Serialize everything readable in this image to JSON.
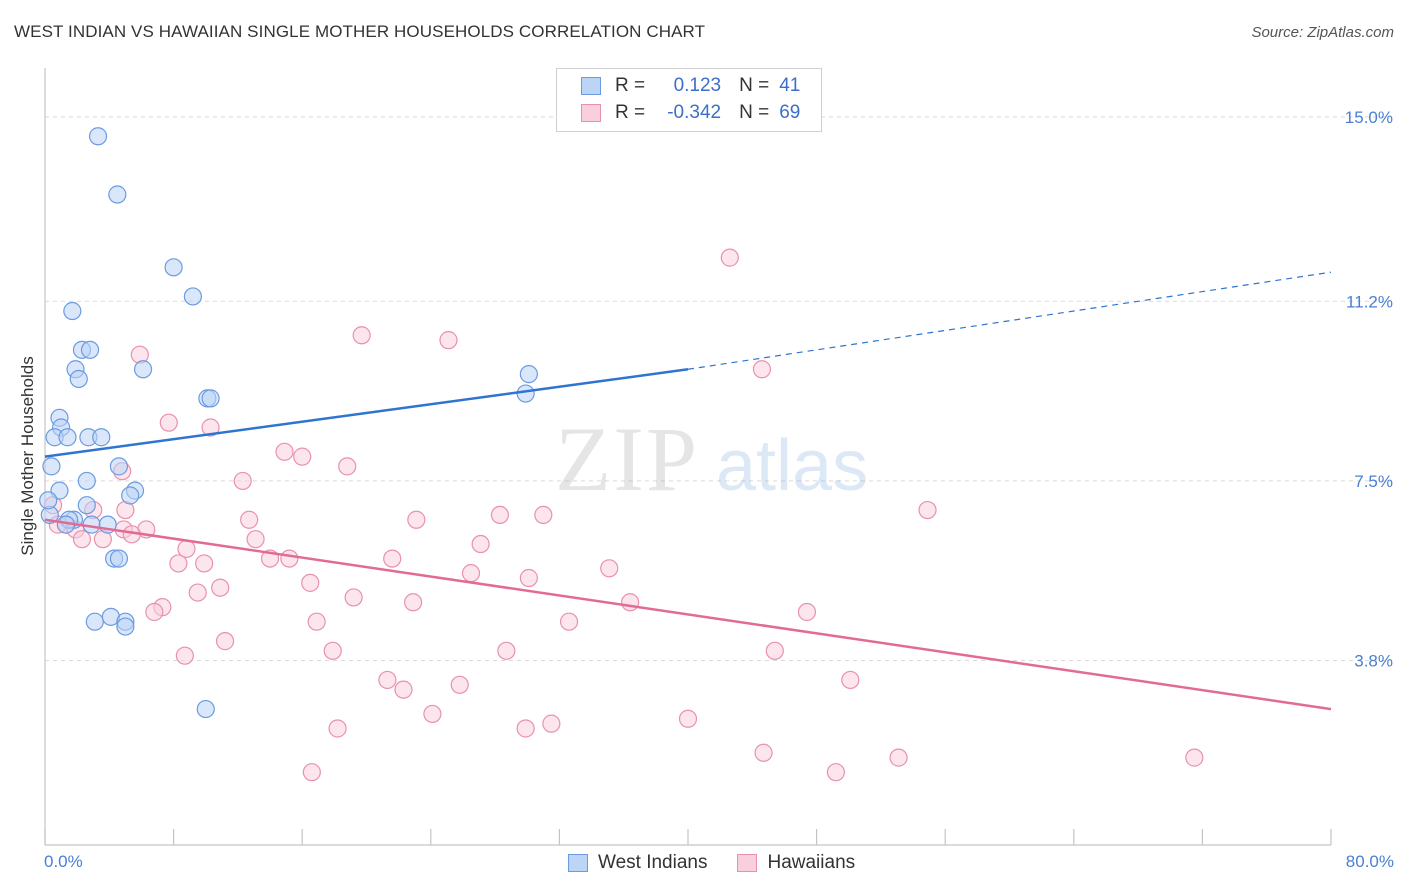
{
  "title": "WEST INDIAN VS HAWAIIAN SINGLE MOTHER HOUSEHOLDS CORRELATION CHART",
  "source": "Source: ZipAtlas.com",
  "colors": {
    "blue": "#6b9be0",
    "blue_fill": "#bcd4f5",
    "blue_line": "#2f74d0",
    "pink": "#e891ae",
    "pink_fill": "#f9cfdc",
    "pink_line": "#e26a96",
    "tick_label": "#4a7fd4"
  },
  "legend": {
    "rows": [
      {
        "r_label": "R =",
        "r_value": "0.123",
        "n_label": "N =",
        "n_value": "41"
      },
      {
        "r_label": "R =",
        "r_value": "-0.342",
        "n_label": "N =",
        "n_value": "69"
      }
    ]
  },
  "bottom_legend": [
    "West Indians",
    "Hawaiians"
  ],
  "chart_data": {
    "type": "scatter",
    "xlabel": "",
    "ylabel": "Single Mother Households",
    "xlim": [
      0,
      80
    ],
    "ylim": [
      0,
      15.8
    ],
    "x_tick_labels": {
      "min": "0.0%",
      "max": "80.0%"
    },
    "y_ticks": [
      {
        "value": 3.8,
        "label": "3.8%"
      },
      {
        "value": 7.5,
        "label": "7.5%"
      },
      {
        "value": 11.2,
        "label": "11.2%"
      },
      {
        "value": 15.0,
        "label": "15.0%"
      }
    ],
    "grid": true,
    "legend_position": "top-center",
    "series": [
      {
        "name": "West Indians",
        "r": 0.123,
        "n": 41,
        "trend": {
          "x0": 0,
          "y0": 8.0,
          "x1": 40,
          "y1": 9.8,
          "dashed_to_x": 80,
          "dashed_to_y": 11.8
        },
        "points": [
          [
            3.3,
            14.6
          ],
          [
            4.5,
            13.4
          ],
          [
            8.0,
            11.9
          ],
          [
            9.2,
            11.3
          ],
          [
            1.7,
            11.0
          ],
          [
            2.3,
            10.2
          ],
          [
            2.8,
            10.2
          ],
          [
            6.1,
            9.8
          ],
          [
            1.9,
            9.8
          ],
          [
            2.1,
            9.6
          ],
          [
            10.1,
            9.2
          ],
          [
            10.3,
            9.2
          ],
          [
            30.1,
            9.7
          ],
          [
            29.9,
            9.3
          ],
          [
            0.9,
            8.8
          ],
          [
            1.0,
            8.6
          ],
          [
            0.6,
            8.4
          ],
          [
            1.4,
            8.4
          ],
          [
            2.7,
            8.4
          ],
          [
            3.5,
            8.4
          ],
          [
            0.4,
            7.8
          ],
          [
            4.6,
            7.8
          ],
          [
            2.6,
            7.5
          ],
          [
            0.9,
            7.3
          ],
          [
            5.6,
            7.3
          ],
          [
            5.3,
            7.2
          ],
          [
            2.6,
            7.0
          ],
          [
            1.8,
            6.7
          ],
          [
            1.5,
            6.7
          ],
          [
            0.3,
            6.8
          ],
          [
            2.9,
            6.6
          ],
          [
            3.9,
            6.6
          ],
          [
            4.3,
            5.9
          ],
          [
            4.6,
            5.9
          ],
          [
            3.1,
            4.6
          ],
          [
            4.1,
            4.7
          ],
          [
            5.0,
            4.6
          ],
          [
            5.0,
            4.5
          ],
          [
            10.0,
            2.8
          ],
          [
            1.3,
            6.6
          ],
          [
            0.2,
            7.1
          ]
        ]
      },
      {
        "name": "Hawaiians",
        "r": -0.342,
        "n": 69,
        "trend": {
          "x0": 0,
          "y0": 6.7,
          "x1": 80,
          "y1": 2.8
        },
        "points": [
          [
            42.6,
            12.1
          ],
          [
            19.7,
            10.5
          ],
          [
            25.1,
            10.4
          ],
          [
            5.9,
            10.1
          ],
          [
            44.6,
            9.8
          ],
          [
            7.7,
            8.7
          ],
          [
            10.3,
            8.6
          ],
          [
            14.9,
            8.1
          ],
          [
            16.0,
            8.0
          ],
          [
            18.8,
            7.8
          ],
          [
            4.8,
            7.7
          ],
          [
            12.3,
            7.5
          ],
          [
            0.5,
            7.0
          ],
          [
            5.0,
            6.9
          ],
          [
            54.9,
            6.9
          ],
          [
            28.3,
            6.8
          ],
          [
            31.0,
            6.8
          ],
          [
            12.7,
            6.7
          ],
          [
            23.1,
            6.7
          ],
          [
            1.3,
            6.6
          ],
          [
            1.9,
            6.5
          ],
          [
            6.3,
            6.5
          ],
          [
            4.9,
            6.5
          ],
          [
            5.4,
            6.4
          ],
          [
            13.1,
            6.3
          ],
          [
            2.3,
            6.3
          ],
          [
            3.6,
            6.3
          ],
          [
            27.1,
            6.2
          ],
          [
            21.6,
            5.9
          ],
          [
            14.0,
            5.9
          ],
          [
            8.3,
            5.8
          ],
          [
            9.9,
            5.8
          ],
          [
            15.2,
            5.9
          ],
          [
            35.1,
            5.7
          ],
          [
            30.1,
            5.5
          ],
          [
            16.5,
            5.4
          ],
          [
            10.9,
            5.3
          ],
          [
            9.5,
            5.2
          ],
          [
            19.2,
            5.1
          ],
          [
            7.3,
            4.9
          ],
          [
            22.9,
            5.0
          ],
          [
            36.4,
            5.0
          ],
          [
            47.4,
            4.8
          ],
          [
            6.8,
            4.8
          ],
          [
            16.9,
            4.6
          ],
          [
            32.6,
            4.6
          ],
          [
            11.2,
            4.2
          ],
          [
            17.9,
            4.0
          ],
          [
            28.7,
            4.0
          ],
          [
            45.4,
            4.0
          ],
          [
            8.7,
            3.9
          ],
          [
            21.3,
            3.4
          ],
          [
            22.3,
            3.2
          ],
          [
            25.8,
            3.3
          ],
          [
            50.1,
            3.4
          ],
          [
            24.1,
            2.7
          ],
          [
            40.0,
            2.6
          ],
          [
            18.2,
            2.4
          ],
          [
            31.5,
            2.5
          ],
          [
            29.9,
            2.4
          ],
          [
            44.7,
            1.9
          ],
          [
            53.1,
            1.8
          ],
          [
            16.6,
            1.5
          ],
          [
            49.2,
            1.5
          ],
          [
            71.5,
            1.8
          ],
          [
            0.8,
            6.6
          ],
          [
            3.0,
            6.9
          ],
          [
            8.8,
            6.1
          ],
          [
            26.5,
            5.6
          ]
        ]
      }
    ]
  }
}
